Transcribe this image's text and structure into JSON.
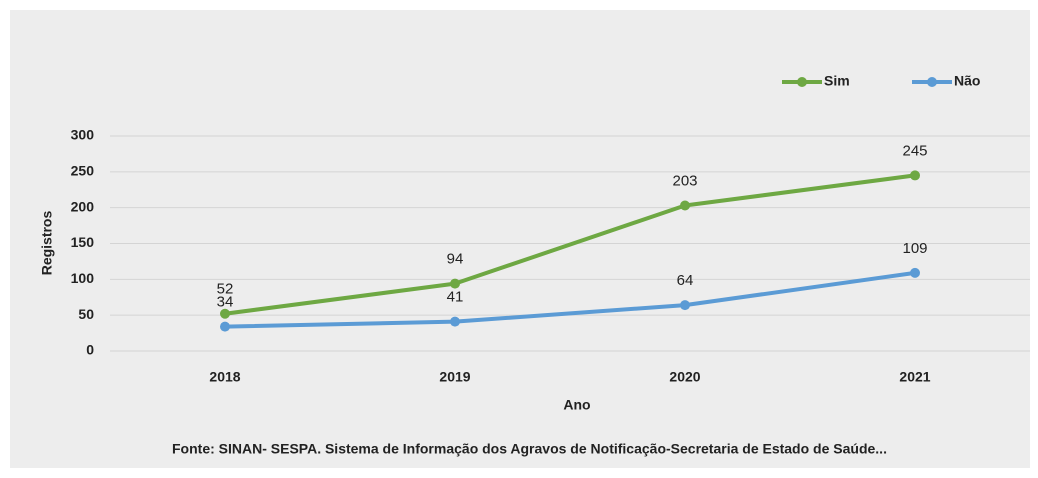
{
  "chart_data": {
    "type": "line",
    "categories": [
      "2018",
      "2019",
      "2020",
      "2021"
    ],
    "series": [
      {
        "name": "Sim",
        "color": "#6ea843",
        "values": [
          52,
          94,
          203,
          245
        ]
      },
      {
        "name": "Não",
        "color": "#5b9bd5",
        "values": [
          34,
          41,
          64,
          109
        ]
      }
    ],
    "ylim": [
      0,
      300
    ],
    "yticks": [
      0,
      50,
      100,
      150,
      200,
      250,
      300
    ],
    "grid": true,
    "xlabel": "Ano",
    "ylabel": "Registros",
    "legend": "top-right",
    "source": "Fonte: SINAN- SESPA. Sistema de Informação dos Agravos de Notificação-Secretaria de Estado de Saúde..."
  }
}
